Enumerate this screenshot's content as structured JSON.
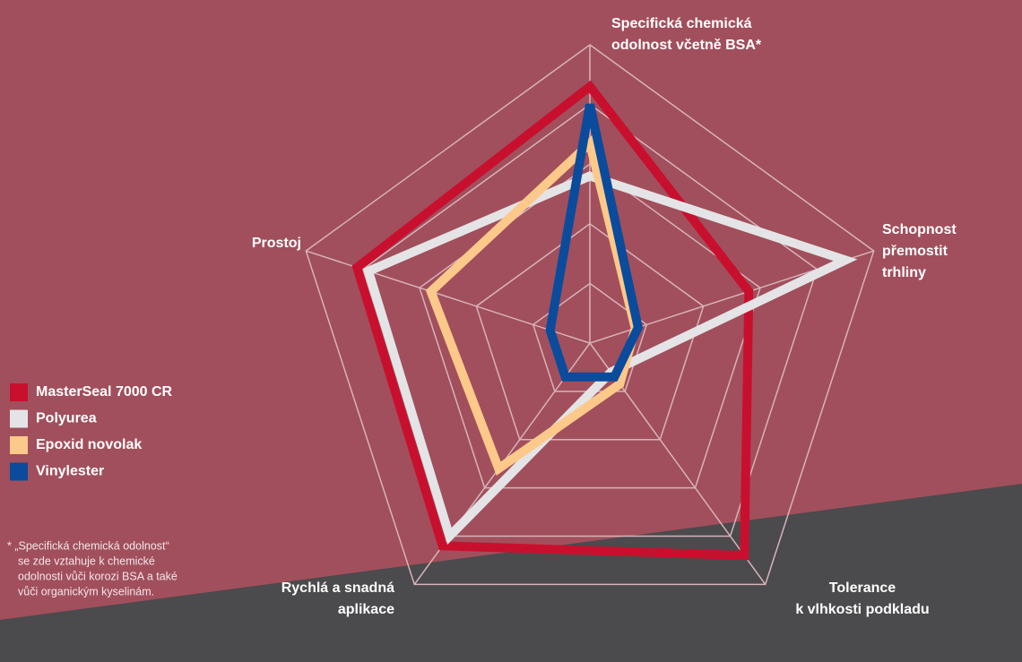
{
  "chart_data": {
    "type": "radar",
    "categories": [
      [
        "Specifická chemická",
        "odolnost včetně BSA*"
      ],
      [
        "Schopnost",
        "přemostit",
        "trhliny"
      ],
      [
        "Tolerance",
        "k vlhkosti podkladu"
      ],
      [
        "Rychlá a snadná",
        "aplikace"
      ],
      [
        "Prostoj"
      ]
    ],
    "rlim": [
      0,
      5
    ],
    "rticks": [
      1,
      2,
      3,
      4,
      5
    ],
    "grid": true,
    "legend": "left",
    "series": [
      {
        "name": "MasterSeal 7000 CR",
        "color": "#c8102e",
        "values": [
          4.3,
          2.8,
          4.4,
          4.2,
          4.1
        ]
      },
      {
        "name": "Polyurea",
        "color": "#e4e4e6",
        "values": [
          2.8,
          4.5,
          0.6,
          4.0,
          3.9
        ]
      },
      {
        "name": "Epoxid novolak",
        "color": "#fcc98a",
        "values": [
          3.35,
          0.8,
          0.85,
          2.6,
          2.8
        ]
      },
      {
        "name": "Vinylester",
        "color": "#0a4b9c",
        "values": [
          4.0,
          0.85,
          0.7,
          0.7,
          0.7
        ]
      }
    ],
    "note": [
      "* „Specifická chemická odolnost“",
      "se zde vztahuje k chemické",
      "odolnosti vůči korozi BSA a také",
      "vůči organickým kyselinám."
    ]
  }
}
